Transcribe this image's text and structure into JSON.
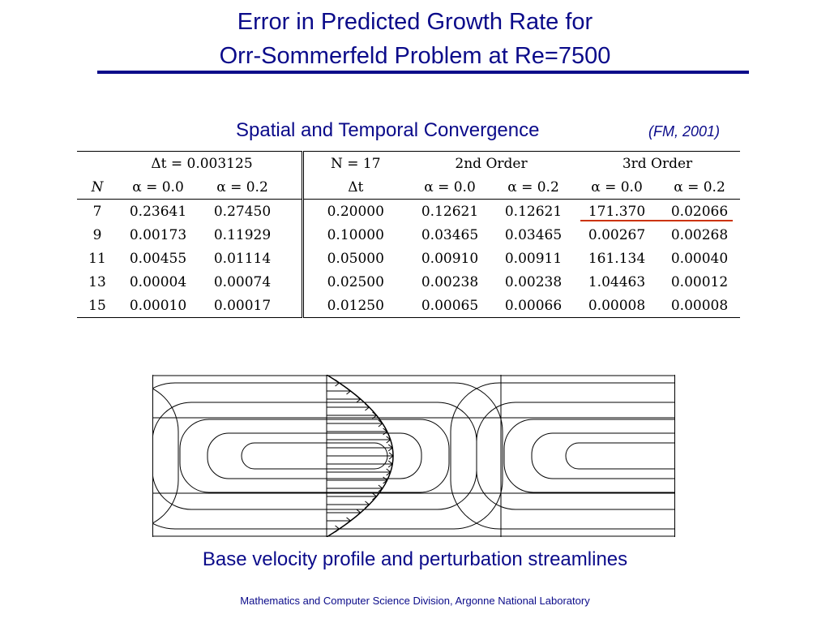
{
  "title": {
    "line1": "Error in Predicted Growth Rate for",
    "line2": "Orr-Sommerfeld Problem at Re=7500"
  },
  "subtitle": "Spatial and Temporal Convergence",
  "citation": "(FM, 2001)",
  "table": {
    "dt_group": "Δt = 0.003125",
    "n_group": "N = 17",
    "second_order": "2nd Order",
    "third_order": "3rd Order",
    "col_n": "N",
    "col_dt": "Δt",
    "alpha_00": "α = 0.0",
    "alpha_02": "α = 0.2",
    "rows": [
      {
        "n": "7",
        "a0": "0.23641",
        "a2": "0.27450",
        "dt": "0.20000",
        "o2a0": "0.12621",
        "o2a2": "0.12621",
        "o3a0": "171.370",
        "o3a2": "0.02066"
      },
      {
        "n": "9",
        "a0": "0.00173",
        "a2": "0.11929",
        "dt": "0.10000",
        "o2a0": "0.03465",
        "o2a2": "0.03465",
        "o3a0": "0.00267",
        "o3a2": "0.00268"
      },
      {
        "n": "11",
        "a0": "0.00455",
        "a2": "0.01114",
        "dt": "0.05000",
        "o2a0": "0.00910",
        "o2a2": "0.00911",
        "o3a0": "161.134",
        "o3a2": "0.00040"
      },
      {
        "n": "13",
        "a0": "0.00004",
        "a2": "0.00074",
        "dt": "0.02500",
        "o2a0": "0.00238",
        "o2a2": "0.00238",
        "o3a0": "1.04463",
        "o3a2": "0.00012"
      },
      {
        "n": "15",
        "a0": "0.00010",
        "a2": "0.00017",
        "dt": "0.01250",
        "o2a0": "0.00065",
        "o2a2": "0.00066",
        "o3a0": "0.00008",
        "o3a2": "0.00008"
      }
    ],
    "highlight_color": "#cc3300"
  },
  "caption": "Base velocity profile and perturbation streamlines",
  "footer": "Mathematics and Computer Science Division, Argonne National Laboratory",
  "colors": {
    "title": "#0b0b8a",
    "highlight": "#cc3300"
  }
}
